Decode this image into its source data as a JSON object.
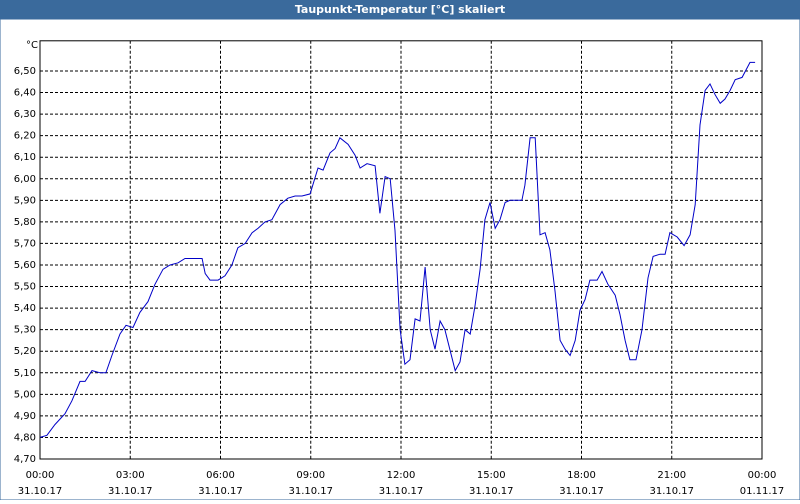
{
  "chart_data": {
    "type": "line",
    "title": "Taupunkt-Temperatur [°C] skaliert",
    "y_label": "°C",
    "x": [
      0,
      0.23,
      0.5,
      0.83,
      1.06,
      1.33,
      1.5,
      1.73,
      2.0,
      2.19,
      2.39,
      2.66,
      2.86,
      3.09,
      3.32,
      3.59,
      3.82,
      4.09,
      4.32,
      4.59,
      4.82,
      5.05,
      5.39,
      5.49,
      5.65,
      5.92,
      6.15,
      6.38,
      6.58,
      6.82,
      7.05,
      7.25,
      7.48,
      7.71,
      7.98,
      8.24,
      8.48,
      8.71,
      8.98,
      9.24,
      9.41,
      9.64,
      9.81,
      9.97,
      10.24,
      10.47,
      10.64,
      10.87,
      11.14,
      11.3,
      11.47,
      11.64,
      11.8,
      11.97,
      12.13,
      12.3,
      12.47,
      12.63,
      12.8,
      12.97,
      13.13,
      13.3,
      13.46,
      13.8,
      13.96,
      14.13,
      14.3,
      14.46,
      14.63,
      14.79,
      14.96,
      15.13,
      15.29,
      15.46,
      15.62,
      15.89,
      16.02,
      16.12,
      16.29,
      16.46,
      16.62,
      16.79,
      16.95,
      17.12,
      17.29,
      17.45,
      17.62,
      17.79,
      17.95,
      18.12,
      18.28,
      18.52,
      18.68,
      18.88,
      19.12,
      19.28,
      19.45,
      19.61,
      19.81,
      20.01,
      20.21,
      20.38,
      20.61,
      20.78,
      20.94,
      21.18,
      21.41,
      21.61,
      21.78,
      21.94,
      22.11,
      22.27,
      22.44,
      22.61,
      22.77,
      22.94,
      23.11,
      23.34,
      23.6,
      23.77
    ],
    "series": [
      {
        "color": "#0000c8",
        "values": [
          4.8,
          4.81,
          4.86,
          4.91,
          4.97,
          5.06,
          5.06,
          5.11,
          5.1,
          5.1,
          5.18,
          5.28,
          5.32,
          5.31,
          5.38,
          5.43,
          5.51,
          5.58,
          5.6,
          5.61,
          5.63,
          5.63,
          5.63,
          5.56,
          5.53,
          5.53,
          5.55,
          5.6,
          5.68,
          5.7,
          5.75,
          5.77,
          5.8,
          5.81,
          5.88,
          5.91,
          5.92,
          5.92,
          5.93,
          6.05,
          6.04,
          6.12,
          6.14,
          6.19,
          6.16,
          6.11,
          6.05,
          6.07,
          6.06,
          5.84,
          6.01,
          6.0,
          5.76,
          5.3,
          5.14,
          5.16,
          5.35,
          5.34,
          5.59,
          5.3,
          5.21,
          5.34,
          5.3,
          5.11,
          5.15,
          5.3,
          5.28,
          5.41,
          5.58,
          5.81,
          5.89,
          5.77,
          5.81,
          5.89,
          5.9,
          5.9,
          5.9,
          5.97,
          6.19,
          6.19,
          5.74,
          5.75,
          5.67,
          5.48,
          5.25,
          5.21,
          5.18,
          5.25,
          5.39,
          5.44,
          5.53,
          5.53,
          5.57,
          5.51,
          5.46,
          5.37,
          5.25,
          5.16,
          5.16,
          5.3,
          5.54,
          5.64,
          5.65,
          5.65,
          5.75,
          5.73,
          5.69,
          5.74,
          5.88,
          6.25,
          6.41,
          6.44,
          6.39,
          6.35,
          6.37,
          6.41,
          6.46,
          6.47,
          6.54,
          6.54
        ]
      }
    ],
    "xlim": [
      0,
      24
    ],
    "xticks": [
      {
        "value": 0,
        "label": "00:00"
      },
      {
        "value": 3,
        "label": "03:00"
      },
      {
        "value": 6,
        "label": "06:00"
      },
      {
        "value": 9,
        "label": "09:00"
      },
      {
        "value": 12,
        "label": "12:00"
      },
      {
        "value": 15,
        "label": "15:00"
      },
      {
        "value": 18,
        "label": "18:00"
      },
      {
        "value": 21,
        "label": "21:00"
      },
      {
        "value": 24,
        "label": "00:00"
      }
    ],
    "xtick_dates": [
      "31.10.17",
      "31.10.17",
      "31.10.17",
      "31.10.17",
      "31.10.17",
      "31.10.17",
      "31.10.17",
      "31.10.17",
      "01.11.17"
    ],
    "ylim": [
      4.7,
      6.64
    ],
    "yticks": [
      {
        "value": 4.7,
        "label": "4,70"
      },
      {
        "value": 4.8,
        "label": "4,80"
      },
      {
        "value": 4.9,
        "label": "4,90"
      },
      {
        "value": 5.0,
        "label": "5,00"
      },
      {
        "value": 5.1,
        "label": "5,10"
      },
      {
        "value": 5.2,
        "label": "5,20"
      },
      {
        "value": 5.3,
        "label": "5,30"
      },
      {
        "value": 5.4,
        "label": "5,40"
      },
      {
        "value": 5.5,
        "label": "5,50"
      },
      {
        "value": 5.6,
        "label": "5,60"
      },
      {
        "value": 5.7,
        "label": "5,70"
      },
      {
        "value": 5.8,
        "label": "5,80"
      },
      {
        "value": 5.9,
        "label": "5,90"
      },
      {
        "value": 6.0,
        "label": "6,00"
      },
      {
        "value": 6.1,
        "label": "6,10"
      },
      {
        "value": 6.2,
        "label": "6,20"
      },
      {
        "value": 6.3,
        "label": "6,30"
      },
      {
        "value": 6.4,
        "label": "6,40"
      },
      {
        "value": 6.5,
        "label": "6,50"
      }
    ],
    "grid": true
  }
}
